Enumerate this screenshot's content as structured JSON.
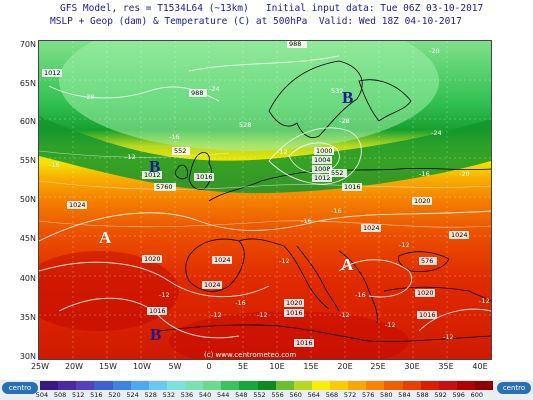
{
  "header": {
    "line1": "GFS Model, res = T1534L64 (~13km)   Initial input data: Tue 06Z 03-10-2017",
    "line2": "MSLP + Geop (dam) & Temperature (C) at 500hPa  Valid: Wed 18Z 04-10-2017"
  },
  "axes": {
    "lat_labels": [
      "70N",
      "65N",
      "60N",
      "55N",
      "50N",
      "45N",
      "40N",
      "35N",
      "30N"
    ],
    "lon_labels": [
      "25W",
      "20W",
      "15W",
      "10W",
      "5W",
      "0",
      "5E",
      "10E",
      "15E",
      "20E",
      "25E",
      "30E",
      "35E",
      "40E"
    ]
  },
  "map": {
    "pressure_labels": [
      {
        "text": "988",
        "kind": "low"
      },
      {
        "text": "1012",
        "kind": "isobar"
      },
      {
        "text": "988",
        "kind": "isobar"
      },
      {
        "text": "528",
        "kind": "geop"
      },
      {
        "text": "532",
        "kind": "geop"
      },
      {
        "text": "552",
        "kind": "geop"
      },
      {
        "text": "1012",
        "kind": "isobar"
      },
      {
        "text": "5760",
        "kind": "geop"
      },
      {
        "text": "1016",
        "kind": "isobar"
      },
      {
        "text": "1024",
        "kind": "isobar"
      },
      {
        "text": "1004",
        "kind": "isobar"
      },
      {
        "text": "1008",
        "kind": "isobar"
      },
      {
        "text": "1012",
        "kind": "isobar"
      },
      {
        "text": "1000",
        "kind": "isobar"
      },
      {
        "text": "1016",
        "kind": "isobar"
      },
      {
        "text": "552",
        "kind": "geop"
      },
      {
        "text": "1020",
        "kind": "isobar"
      },
      {
        "text": "1024",
        "kind": "isobar"
      },
      {
        "text": "1024",
        "kind": "isobar"
      },
      {
        "text": "1020",
        "kind": "isobar"
      },
      {
        "text": "1024",
        "kind": "isobar"
      },
      {
        "text": "1024",
        "kind": "isobar"
      },
      {
        "text": "1016",
        "kind": "isobar"
      },
      {
        "text": "1020",
        "kind": "isobar"
      },
      {
        "text": "1016",
        "kind": "isobar"
      },
      {
        "text": "1016",
        "kind": "isobar"
      },
      {
        "text": "1020",
        "kind": "isobar"
      },
      {
        "text": "1016",
        "kind": "isobar"
      },
      {
        "text": "576",
        "kind": "geop"
      }
    ],
    "pressure_centers": [
      {
        "text": "B",
        "type": "low"
      },
      {
        "text": "B",
        "type": "low"
      },
      {
        "text": "B",
        "type": "low"
      },
      {
        "text": "A",
        "type": "high"
      },
      {
        "text": "A",
        "type": "high"
      }
    ],
    "temp_labels": [
      "-28",
      "-24",
      "-28",
      "-20",
      "-24",
      "-16",
      "-16",
      "-12",
      "-12",
      "-16",
      "-20",
      "-16",
      "-12",
      "-16",
      "-12",
      "-12",
      "-16",
      "-12",
      "-12",
      "-16",
      "-12",
      "-12",
      "-12",
      "-12"
    ],
    "watermark": "(c) www.centrometeo.com"
  },
  "colorbar": {
    "labels": [
      "504",
      "508",
      "512",
      "516",
      "520",
      "524",
      "528",
      "532",
      "536",
      "540",
      "544",
      "548",
      "552",
      "556",
      "560",
      "564",
      "568",
      "572",
      "576",
      "580",
      "584",
      "588",
      "592",
      "596",
      "600"
    ],
    "colors": [
      "#3a1a80",
      "#4a2aa0",
      "#5540c0",
      "#4060d0",
      "#3f82e0",
      "#50a8f0",
      "#6cc8f0",
      "#80e0e0",
      "#7ee0b0",
      "#6cd890",
      "#3cc060",
      "#16a838",
      "#108a20",
      "#6cc030",
      "#b8d820",
      "#f8f000",
      "#f8cc00",
      "#f8a800",
      "#f88400",
      "#f06000",
      "#e84000",
      "#d82000",
      "#c81010",
      "#b00000",
      "#900000"
    ],
    "left_logo": "centro",
    "right_logo": "centro"
  },
  "legend": {
    "center_glyph_low": "B",
    "center_glyph_high": "A"
  }
}
